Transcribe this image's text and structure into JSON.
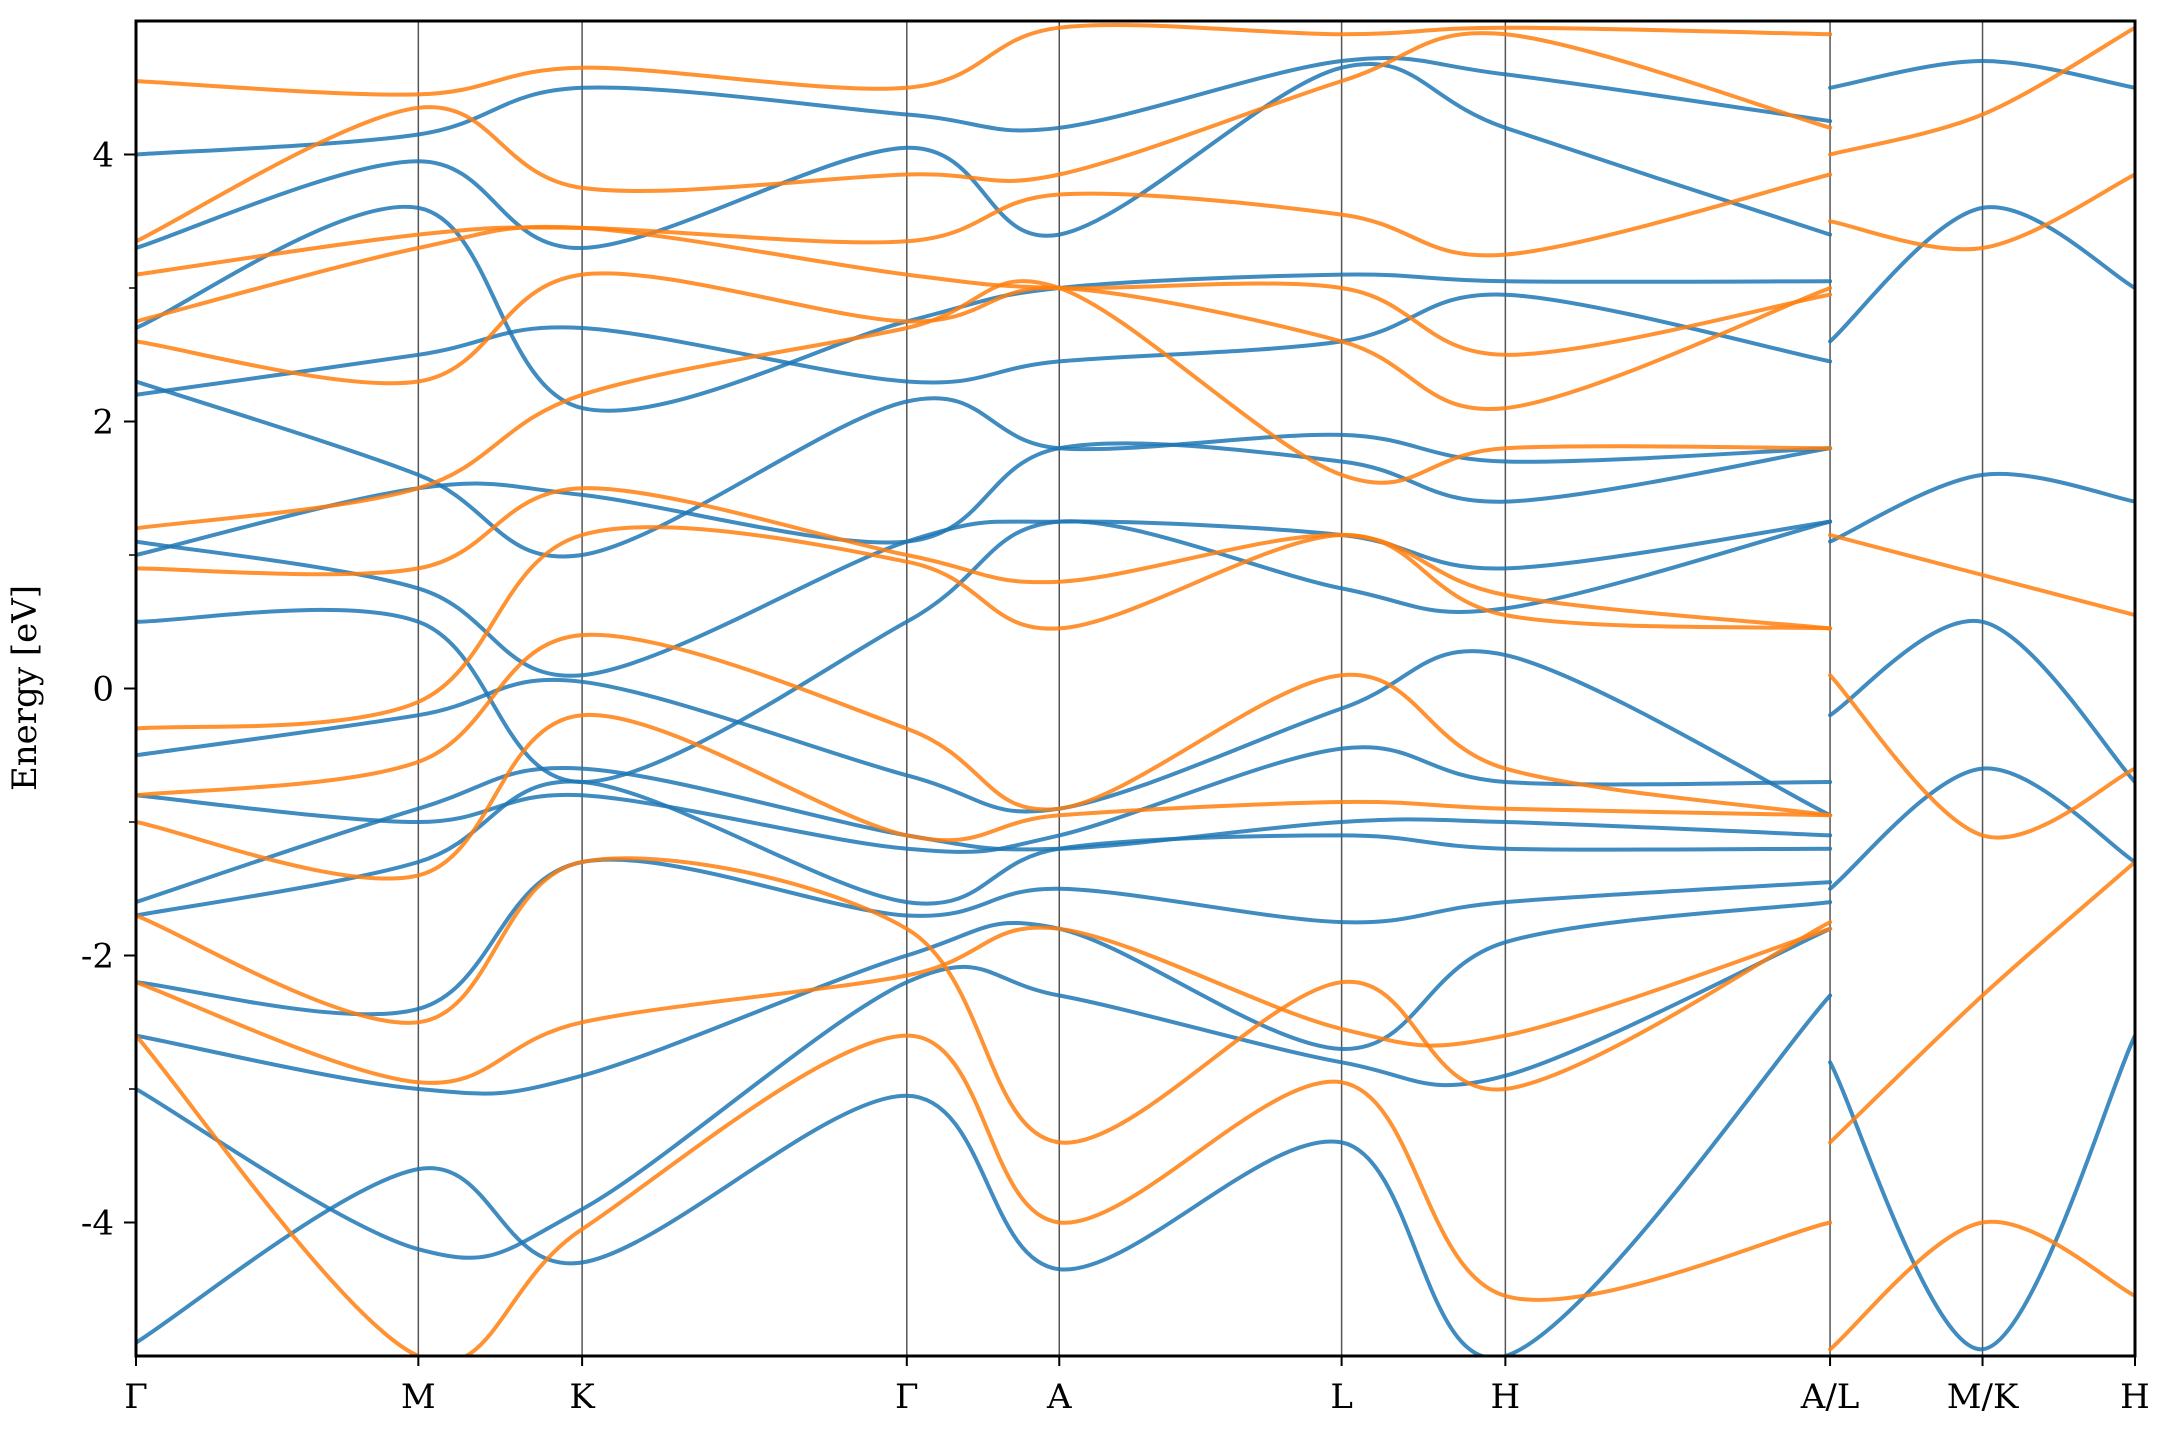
{
  "chart_data": {
    "type": "line",
    "ylabel": "Energy [eV]",
    "xlabel": "",
    "title": "",
    "ylim": [
      -5,
      5
    ],
    "yticks": [
      -4,
      -2,
      0,
      2,
      4
    ],
    "ytick_labels": [
      "-4",
      "-2",
      "0",
      "2",
      "4"
    ],
    "minor_yticks": [
      -3,
      -1,
      1,
      3
    ],
    "grid": false,
    "legend": "none",
    "kpoints": [
      {
        "label": "Γ",
        "x": 0.0
      },
      {
        "label": "M",
        "x": 1.0
      },
      {
        "label": "K",
        "x": 1.58
      },
      {
        "label": "Γ",
        "x": 2.73
      },
      {
        "label": "A",
        "x": 3.27
      },
      {
        "label": "L",
        "x": 4.27
      },
      {
        "label": "H",
        "x": 4.85
      },
      {
        "label": "A/L",
        "x": 6.0
      },
      {
        "label": "M/K",
        "x": 6.54
      },
      {
        "label": "H",
        "x": 7.08
      }
    ],
    "xlim": [
      0,
      7.08
    ],
    "series": [
      {
        "color": "#1f77b4",
        "bands": [
          {
            "x": [
              0,
              1,
              1.58,
              2.73,
              3.27,
              4.27,
              4.85,
              6.0
            ],
            "y": [
              -4.9,
              -3.6,
              -4.3,
              -3.05,
              -4.35,
              -3.4,
              -5.0,
              -2.3
            ]
          },
          {
            "x": [
              0,
              1,
              1.58,
              2.73,
              3.27,
              4.27,
              4.85,
              6.0
            ],
            "y": [
              -3.0,
              -4.2,
              -3.9,
              -2.2,
              -2.3,
              -2.8,
              -2.9,
              -1.8
            ]
          },
          {
            "x": [
              0,
              1,
              1.58,
              2.73,
              3.27,
              4.27,
              4.85,
              6.0
            ],
            "y": [
              -2.6,
              -3.0,
              -2.9,
              -2.0,
              -1.8,
              -2.7,
              -1.9,
              -1.6
            ]
          },
          {
            "x": [
              0,
              1,
              1.58,
              2.73,
              3.27,
              4.27,
              4.85,
              6.0
            ],
            "y": [
              -2.2,
              -2.4,
              -1.3,
              -1.7,
              -1.5,
              -1.75,
              -1.6,
              -1.45
            ]
          },
          {
            "x": [
              0,
              1,
              1.58,
              2.73,
              3.27,
              4.27,
              4.85,
              6.0
            ],
            "y": [
              -1.7,
              -1.3,
              -0.7,
              -1.6,
              -1.2,
              -1.1,
              -1.2,
              -1.2
            ]
          },
          {
            "x": [
              0,
              1,
              1.58,
              2.73,
              3.27,
              4.27,
              4.85,
              6.0
            ],
            "y": [
              -1.6,
              -0.9,
              -0.6,
              -1.1,
              -1.2,
              -1.0,
              -1.0,
              -1.1
            ]
          },
          {
            "x": [
              0,
              1,
              1.58,
              2.73,
              3.27,
              4.27,
              4.85,
              6.0
            ],
            "y": [
              -0.8,
              -1.0,
              -0.8,
              -1.2,
              -1.1,
              -0.45,
              -0.7,
              -0.7
            ]
          },
          {
            "x": [
              0,
              1,
              1.58,
              2.73,
              3.27,
              4.27,
              4.85,
              6.0
            ],
            "y": [
              -0.5,
              -0.2,
              0.05,
              -0.65,
              -0.9,
              -0.15,
              0.25,
              -0.95
            ]
          },
          {
            "x": [
              0,
              1,
              1.58,
              2.73,
              3.27,
              4.27,
              4.85,
              6.0
            ],
            "y": [
              0.5,
              0.5,
              -0.7,
              0.5,
              1.25,
              0.75,
              0.6,
              1.25
            ]
          },
          {
            "x": [
              0,
              1,
              1.58,
              2.73,
              3.27,
              4.27,
              4.85,
              6.0
            ],
            "y": [
              1.1,
              0.75,
              0.1,
              1.1,
              1.25,
              1.15,
              0.9,
              1.25
            ]
          },
          {
            "x": [
              0,
              1,
              1.58,
              2.73,
              3.27,
              4.27,
              4.85,
              6.0
            ],
            "y": [
              1.0,
              1.5,
              1.45,
              1.1,
              1.8,
              1.7,
              1.4,
              1.8
            ]
          },
          {
            "x": [
              0,
              1,
              1.58,
              2.73,
              3.27,
              4.27,
              4.85,
              6.0
            ],
            "y": [
              2.3,
              1.6,
              1.0,
              2.15,
              1.8,
              1.9,
              1.7,
              1.8
            ]
          },
          {
            "x": [
              0,
              1,
              1.58,
              2.73,
              3.27,
              4.27,
              4.85,
              6.0
            ],
            "y": [
              2.2,
              2.5,
              2.7,
              2.3,
              2.45,
              2.6,
              2.95,
              2.45
            ]
          },
          {
            "x": [
              0,
              1,
              1.58,
              2.73,
              3.27,
              4.27,
              4.85,
              6.0
            ],
            "y": [
              2.7,
              3.6,
              2.1,
              2.75,
              3.0,
              3.1,
              3.05,
              3.05
            ]
          },
          {
            "x": [
              0,
              1,
              1.58,
              2.73,
              3.27,
              4.27,
              4.85,
              6.0
            ],
            "y": [
              3.3,
              3.95,
              3.3,
              4.05,
              3.4,
              4.65,
              4.2,
              3.4
            ]
          },
          {
            "x": [
              0,
              1,
              1.58,
              2.73,
              3.27,
              4.27,
              4.85,
              6.0
            ],
            "y": [
              4.0,
              4.15,
              4.5,
              4.3,
              4.2,
              4.7,
              4.6,
              4.25
            ]
          },
          {
            "x": [
              6.0,
              6.54,
              7.08
            ],
            "y": [
              -2.8,
              -4.95,
              -2.6
            ]
          },
          {
            "x": [
              6.0,
              6.54,
              7.08
            ],
            "y": [
              -1.5,
              -0.6,
              -1.3
            ]
          },
          {
            "x": [
              6.0,
              6.54,
              7.08
            ],
            "y": [
              -0.2,
              0.5,
              -0.7
            ]
          },
          {
            "x": [
              6.0,
              6.54,
              7.08
            ],
            "y": [
              1.1,
              1.6,
              1.4
            ]
          },
          {
            "x": [
              6.0,
              6.54,
              7.08
            ],
            "y": [
              2.6,
              3.6,
              3.0
            ]
          },
          {
            "x": [
              6.0,
              6.54,
              7.08
            ],
            "y": [
              4.5,
              4.7,
              4.5
            ]
          }
        ]
      },
      {
        "color": "#ff7f0e",
        "bands": [
          {
            "x": [
              0,
              1,
              1.58,
              2.73,
              3.27,
              4.27,
              4.85,
              6.0
            ],
            "y": [
              -2.6,
              -5.0,
              -4.05,
              -2.6,
              -4.0,
              -2.95,
              -4.55,
              -4.0
            ]
          },
          {
            "x": [
              0,
              1,
              1.58,
              2.73,
              3.27,
              4.27,
              4.85,
              6.0
            ],
            "y": [
              -2.2,
              -2.95,
              -2.5,
              -2.15,
              -1.8,
              -2.55,
              -2.6,
              -1.8
            ]
          },
          {
            "x": [
              0,
              1,
              1.58,
              2.73,
              3.27,
              4.27,
              4.85,
              6.0
            ],
            "y": [
              -1.7,
              -2.5,
              -1.3,
              -1.8,
              -3.4,
              -2.2,
              -3.0,
              -1.75
            ]
          },
          {
            "x": [
              0,
              1,
              1.58,
              2.73,
              3.27,
              4.27,
              4.85,
              6.0
            ],
            "y": [
              -1.0,
              -1.4,
              -0.2,
              -1.1,
              -0.95,
              -0.85,
              -0.9,
              -0.95
            ]
          },
          {
            "x": [
              0,
              1,
              1.58,
              2.73,
              3.27,
              4.27,
              4.85,
              6.0
            ],
            "y": [
              -0.8,
              -0.55,
              0.4,
              -0.3,
              -0.9,
              0.1,
              -0.6,
              -0.95
            ]
          },
          {
            "x": [
              0,
              1,
              1.58,
              2.73,
              3.27,
              4.27,
              4.85,
              6.0
            ],
            "y": [
              -0.3,
              -0.1,
              1.15,
              0.95,
              0.45,
              1.15,
              0.55,
              0.45
            ]
          },
          {
            "x": [
              0,
              1,
              1.58,
              2.73,
              3.27,
              4.27,
              4.85,
              6.0
            ],
            "y": [
              0.9,
              0.9,
              1.5,
              1.0,
              0.8,
              1.15,
              0.7,
              0.45
            ]
          },
          {
            "x": [
              0,
              1,
              1.58,
              2.73,
              3.27,
              4.27,
              4.85,
              6.0
            ],
            "y": [
              1.2,
              1.5,
              2.2,
              2.7,
              3.0,
              1.6,
              1.8,
              1.8
            ]
          },
          {
            "x": [
              0,
              1,
              1.58,
              2.73,
              3.27,
              4.27,
              4.85,
              6.0
            ],
            "y": [
              2.6,
              2.3,
              3.1,
              2.75,
              3.0,
              2.6,
              2.1,
              3.0
            ]
          },
          {
            "x": [
              0,
              1,
              1.58,
              2.73,
              3.27,
              4.27,
              4.85,
              6.0
            ],
            "y": [
              2.75,
              3.3,
              3.45,
              3.1,
              3.0,
              3.0,
              2.5,
              2.95
            ]
          },
          {
            "x": [
              0,
              1,
              1.58,
              2.73,
              3.27,
              4.27,
              4.85,
              6.0
            ],
            "y": [
              3.1,
              3.4,
              3.45,
              3.35,
              3.7,
              3.55,
              3.25,
              3.85
            ]
          },
          {
            "x": [
              0,
              1,
              1.58,
              2.73,
              3.27,
              4.27,
              4.85,
              6.0
            ],
            "y": [
              3.35,
              4.35,
              3.75,
              3.85,
              3.85,
              4.55,
              4.9,
              4.2
            ]
          },
          {
            "x": [
              0,
              1,
              1.58,
              2.73,
              3.27,
              4.27,
              4.85,
              6.0
            ],
            "y": [
              4.55,
              4.45,
              4.65,
              4.5,
              4.95,
              4.9,
              4.95,
              4.9
            ]
          },
          {
            "x": [
              6.0,
              6.54,
              7.08
            ],
            "y": [
              -4.95,
              -4.0,
              -4.55
            ]
          },
          {
            "x": [
              6.0,
              6.54,
              7.08
            ],
            "y": [
              -3.4,
              -2.3,
              -1.3
            ]
          },
          {
            "x": [
              6.0,
              6.54,
              7.08
            ],
            "y": [
              0.1,
              -1.1,
              -0.6
            ]
          },
          {
            "x": [
              6.0,
              6.54,
              7.08
            ],
            "y": [
              1.15,
              0.85,
              0.55
            ]
          },
          {
            "x": [
              6.0,
              6.54,
              7.08
            ],
            "y": [
              3.5,
              3.3,
              3.85
            ]
          },
          {
            "x": [
              6.0,
              6.54,
              7.08
            ],
            "y": [
              4.0,
              4.3,
              4.95
            ]
          }
        ]
      }
    ]
  }
}
